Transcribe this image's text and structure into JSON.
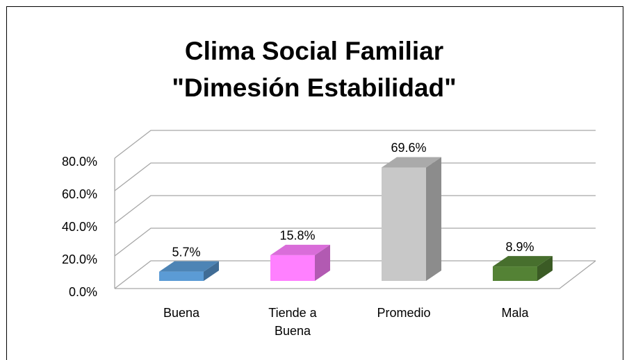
{
  "chart_data": {
    "type": "bar3d",
    "title": "Clima Social Familiar",
    "subtitle": "\"Dimesión Estabilidad\"",
    "categories": [
      "Buena",
      "Tiende a Buena",
      "Promedio",
      "Mala"
    ],
    "values": [
      5.7,
      15.8,
      69.6,
      8.9
    ],
    "value_labels": [
      "5.7%",
      "15.8%",
      "69.6%",
      "8.9%"
    ],
    "colors": [
      "#5b9bd5",
      "#ff80ff",
      "#c8c8c8",
      "#548235"
    ],
    "ylim": [
      0,
      80
    ],
    "yticks": [
      {
        "value": 0,
        "label": "0.0%"
      },
      {
        "value": 20,
        "label": "20.0%"
      },
      {
        "value": 40,
        "label": "40.0%"
      },
      {
        "value": 60,
        "label": "60.0%"
      },
      {
        "value": 80,
        "label": "80.0%"
      }
    ],
    "grid": true
  }
}
